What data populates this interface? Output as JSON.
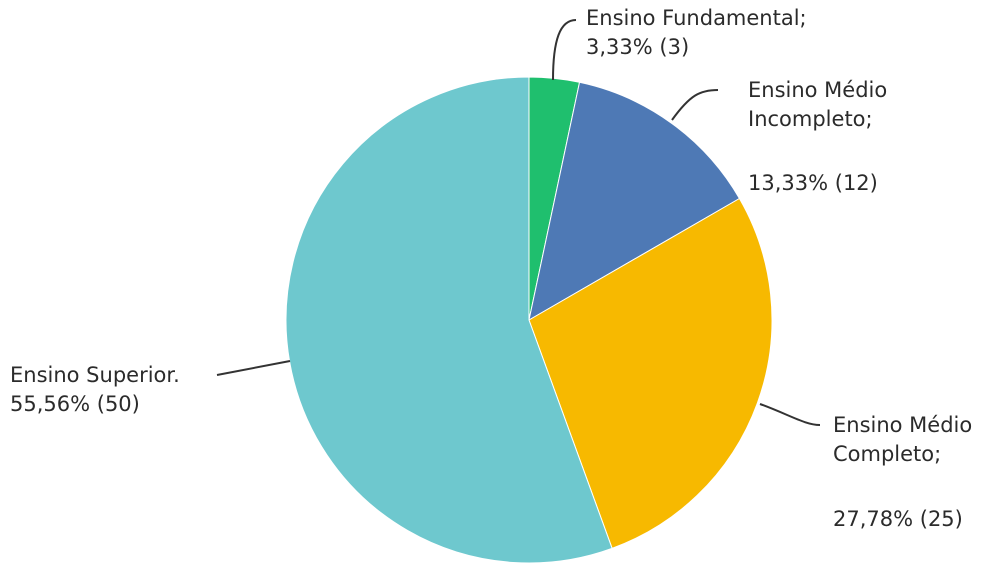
{
  "chart_data": {
    "type": "pie",
    "slices": [
      {
        "name_lines": [
          "Ensino Fundamental;"
        ],
        "value_label": "3,33% (3)",
        "percent": 3.33,
        "count": 3,
        "color": "#1fbf6e"
      },
      {
        "name_lines": [
          "Ensino Médio",
          "Incompleto;"
        ],
        "value_label": "13,33% (12)",
        "percent": 13.33,
        "count": 12,
        "color": "#4e79b5"
      },
      {
        "name_lines": [
          "Ensino Médio",
          "Completo;"
        ],
        "value_label": "27,78% (25)",
        "percent": 27.78,
        "count": 25,
        "color": "#f7b900"
      },
      {
        "name_lines": [
          "Ensino Superior."
        ],
        "value_label": "55,56% (50)",
        "percent": 55.56,
        "count": 50,
        "color": "#6ec8ce"
      }
    ]
  }
}
